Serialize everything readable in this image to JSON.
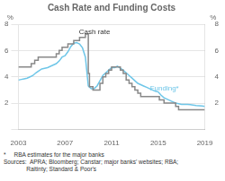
{
  "chart_data": {
    "type": "line",
    "title": "Cash Rate and Funding Costs",
    "ylabel": "%",
    "y2label": "%",
    "xlim": [
      2003,
      2019
    ],
    "xticks": [
      2003,
      2007,
      2011,
      2015,
      2019
    ],
    "ylim": [
      0,
      8
    ],
    "yticks": [
      {
        "value": 0,
        "label": ""
      },
      2,
      4,
      6,
      8
    ],
    "y2lim": [
      0,
      8
    ],
    "y2ticks": [
      {
        "value": 0,
        "label": ""
      },
      2,
      4,
      6,
      8
    ],
    "grid": "y",
    "series": [
      {
        "name": "Cash rate",
        "color": "#888888",
        "line_style": "step",
        "x": [
          2003.0,
          2003.1,
          2004.0,
          2004.1,
          2004.4,
          2004.7,
          2005.0,
          2005.25,
          2005.5,
          2005.75,
          2006.0,
          2006.25,
          2006.5,
          2006.75,
          2007.0,
          2007.25,
          2007.5,
          2007.75,
          2008.0,
          2008.25,
          2008.5,
          2008.75,
          2008.9,
          2009.0,
          2009.1,
          2009.4,
          2009.7,
          2010.0,
          2010.25,
          2010.5,
          2010.75,
          2011.0,
          2011.25,
          2011.5,
          2011.75,
          2012.0,
          2012.25,
          2012.5,
          2012.75,
          2013.0,
          2013.25,
          2013.5,
          2013.75,
          2014.0,
          2014.25,
          2014.5,
          2014.75,
          2015.0,
          2015.1,
          2015.5,
          2015.75,
          2016.0,
          2016.25,
          2016.5,
          2016.75,
          2017.0,
          2017.25,
          2017.5,
          2017.75,
          2018.0,
          2018.25,
          2018.5,
          2018.75,
          2019.0
        ],
        "values": [
          4.75,
          4.75,
          4.75,
          5.0,
          5.25,
          5.5,
          5.5,
          5.5,
          5.5,
          5.5,
          5.5,
          5.75,
          6.0,
          6.25,
          6.25,
          6.5,
          6.5,
          6.75,
          6.75,
          7.0,
          7.0,
          7.25,
          7.25,
          4.25,
          3.25,
          3.0,
          3.0,
          3.5,
          4.0,
          4.25,
          4.5,
          4.75,
          4.75,
          4.75,
          4.5,
          4.25,
          3.75,
          3.5,
          3.25,
          3.0,
          2.75,
          2.5,
          2.5,
          2.5,
          2.5,
          2.5,
          2.5,
          2.5,
          2.25,
          2.0,
          2.0,
          2.0,
          2.0,
          1.75,
          1.5,
          1.5,
          1.5,
          1.5,
          1.5,
          1.5,
          1.5,
          1.5,
          1.5,
          1.5
        ]
      },
      {
        "name": "Funding*",
        "color": "#6ec6e8",
        "line_style": "solid",
        "x": [
          2003.0,
          2003.25,
          2003.5,
          2003.75,
          2004.0,
          2004.25,
          2004.5,
          2004.75,
          2005.0,
          2005.25,
          2005.5,
          2005.75,
          2006.0,
          2006.25,
          2006.5,
          2006.75,
          2007.0,
          2007.25,
          2007.5,
          2007.75,
          2008.0,
          2008.25,
          2008.5,
          2008.75,
          2009.0,
          2009.25,
          2009.5,
          2009.75,
          2010.0,
          2010.25,
          2010.5,
          2010.75,
          2011.0,
          2011.25,
          2011.5,
          2011.75,
          2012.0,
          2012.25,
          2012.5,
          2012.75,
          2013.0,
          2013.25,
          2013.5,
          2013.75,
          2014.0,
          2014.25,
          2014.5,
          2014.75,
          2015.0,
          2015.25,
          2015.5,
          2015.75,
          2016.0,
          2016.25,
          2016.5,
          2016.75,
          2017.0,
          2017.25,
          2017.5,
          2017.75,
          2018.0,
          2018.25,
          2018.5,
          2018.75,
          2019.0
        ],
        "values": [
          3.75,
          3.8,
          3.85,
          3.9,
          4.0,
          4.1,
          4.3,
          4.45,
          4.6,
          4.65,
          4.7,
          4.8,
          4.9,
          5.0,
          5.2,
          5.5,
          5.6,
          5.9,
          6.3,
          6.55,
          6.6,
          6.5,
          6.2,
          5.5,
          3.3,
          3.1,
          3.1,
          3.3,
          3.7,
          4.1,
          4.3,
          4.5,
          4.7,
          4.7,
          4.8,
          4.65,
          4.5,
          4.3,
          4.1,
          3.9,
          3.7,
          3.5,
          3.4,
          3.3,
          3.2,
          3.1,
          3.0,
          2.9,
          2.85,
          2.6,
          2.4,
          2.3,
          2.2,
          2.1,
          2.0,
          1.95,
          1.9,
          1.9,
          1.9,
          1.88,
          1.85,
          1.82,
          1.8,
          1.78,
          1.75
        ]
      }
    ],
    "annotations": [
      {
        "text": "Cash rate",
        "x": 2008.2,
        "y": 7.15,
        "color": "#333333"
      },
      {
        "text": "Funding*",
        "x": 2014.3,
        "y": 2.85,
        "color": "#6ec6e8"
      }
    ],
    "footnote": "*     RBA estimates for the major banks",
    "source": "Sources:  APRA; Bloomberg; Canstar; major banks' websites; RBA;\n              Raitinty; Standard & Poor's"
  }
}
